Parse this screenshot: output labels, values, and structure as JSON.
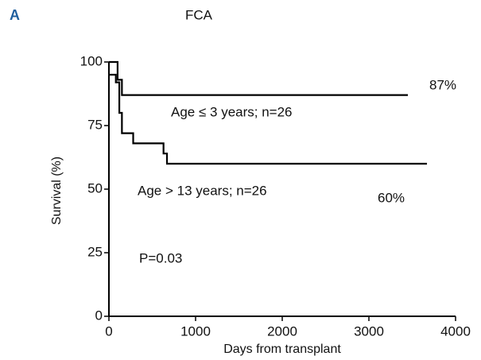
{
  "chart_data": {
    "type": "line",
    "panel": "A",
    "title": "FCA",
    "xlabel": "Days from transplant",
    "ylabel": "Survival (%)",
    "xlim": [
      0,
      4000
    ],
    "xticks": [
      0,
      1000,
      2000,
      3000,
      4000
    ],
    "ylim": [
      0,
      100
    ],
    "yticks": [
      0,
      25,
      50,
      75,
      100
    ],
    "step": true,
    "series": [
      {
        "name": "Age ≤ 3 years; n=26",
        "color": "#000000",
        "x": [
          0,
          100,
          100,
          150,
          150,
          3450
        ],
        "values": [
          100,
          100,
          93,
          93,
          87,
          87
        ]
      },
      {
        "name": "Age > 13 years; n=26",
        "color": "#000000",
        "x": [
          0,
          80,
          80,
          120,
          120,
          150,
          150,
          280,
          280,
          630,
          630,
          670,
          670,
          3670
        ],
        "values": [
          95,
          95,
          92,
          92,
          80,
          80,
          72,
          72,
          68,
          68,
          64,
          64,
          60,
          60
        ]
      }
    ],
    "annotations": [
      "87%",
      "60%",
      "P=0.03"
    ]
  }
}
